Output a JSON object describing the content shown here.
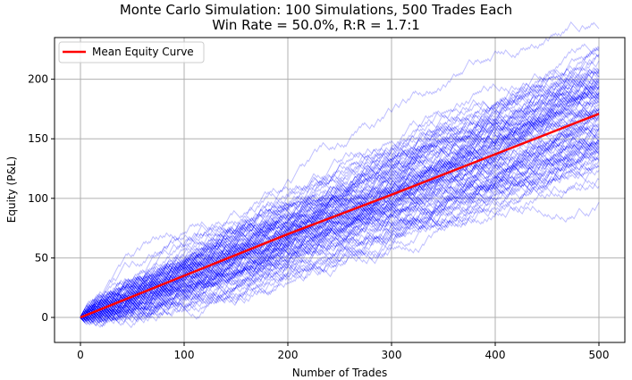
{
  "chart_data": {
    "type": "line",
    "title": "Monte Carlo Simulation: 100 Simulations, 500 Trades Each",
    "subtitle": "Win Rate = 50.0%, R:R = 1.7:1",
    "xlabel": "Number of Trades",
    "ylabel": "Equity (P&L)",
    "xlim": [
      -25,
      525
    ],
    "ylim": [
      -21,
      235
    ],
    "xticks": [
      0,
      100,
      200,
      300,
      400,
      500
    ],
    "yticks": [
      0,
      50,
      100,
      150,
      200
    ],
    "grid": true,
    "legend": {
      "position": "top-left",
      "entries": [
        "Mean Equity Curve"
      ]
    },
    "simulations": {
      "count": 100,
      "trades": 500,
      "win_rate": 0.5,
      "win_r": 1.7,
      "loss_r": 1.0,
      "color": "#0000ff",
      "alpha": 0.25
    },
    "series": [
      {
        "name": "Mean Equity Curve",
        "color": "#ff0000",
        "x": [
          0,
          100,
          200,
          300,
          400,
          500
        ],
        "values": [
          0,
          35,
          70,
          103,
          137,
          171
        ]
      }
    ]
  }
}
